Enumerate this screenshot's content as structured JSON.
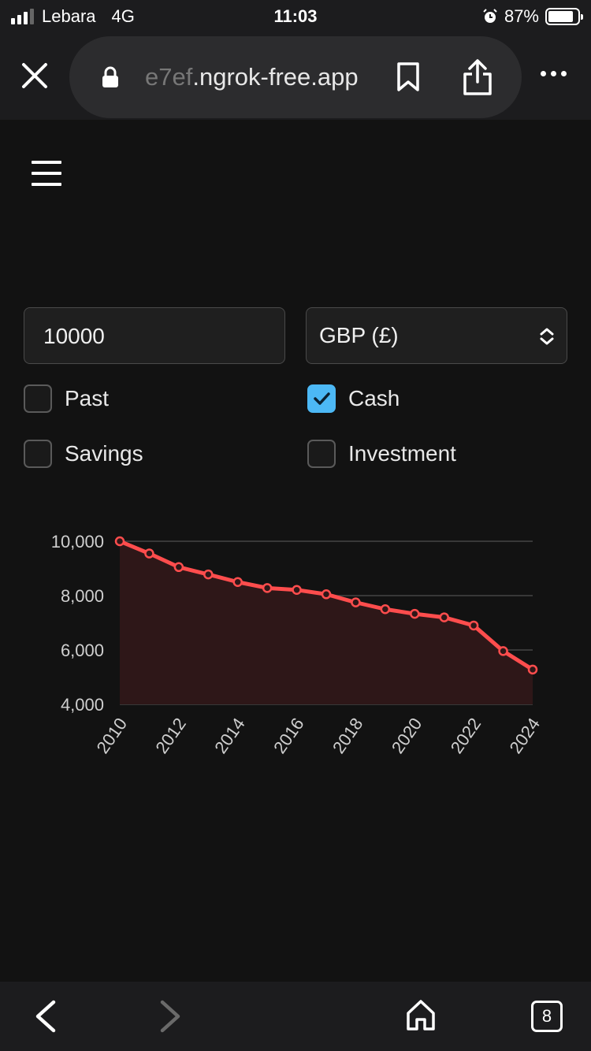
{
  "status": {
    "carrier": "Lebara",
    "network": "4G",
    "time": "11:03",
    "battery": "87%",
    "battery_level": 0.87
  },
  "browser": {
    "url_faded": "e7ef",
    "url_main": ".ngrok-free.app",
    "tab_count": "8"
  },
  "form": {
    "amount": "10000",
    "currency": "GBP (£)",
    "options": [
      {
        "label": "Past",
        "checked": false
      },
      {
        "label": "Cash",
        "checked": true
      },
      {
        "label": "Savings",
        "checked": false
      },
      {
        "label": "Investment",
        "checked": false
      }
    ]
  },
  "colors": {
    "line": "#ff4d4d",
    "fill": "#2e1718",
    "checkbox_accent": "#4cb8f5"
  },
  "chart_data": {
    "type": "area",
    "x": [
      "2010",
      "2011",
      "2012",
      "2013",
      "2014",
      "2015",
      "2016",
      "2017",
      "2018",
      "2019",
      "2020",
      "2021",
      "2022",
      "2023",
      "2024"
    ],
    "values": [
      10000,
      9550,
      9050,
      8780,
      8500,
      8280,
      8210,
      8050,
      7750,
      7500,
      7330,
      7200,
      6900,
      5960,
      5280
    ],
    "x_tick_labels": [
      "2010",
      "2012",
      "2014",
      "2016",
      "2018",
      "2020",
      "2022",
      "2024"
    ],
    "y_tick_labels": [
      "10,000",
      "8,000",
      "6,000",
      "4,000"
    ],
    "y_ticks": [
      10000,
      8000,
      6000,
      4000
    ],
    "ylim": [
      4000,
      10000
    ],
    "grid": true,
    "legend": false
  }
}
